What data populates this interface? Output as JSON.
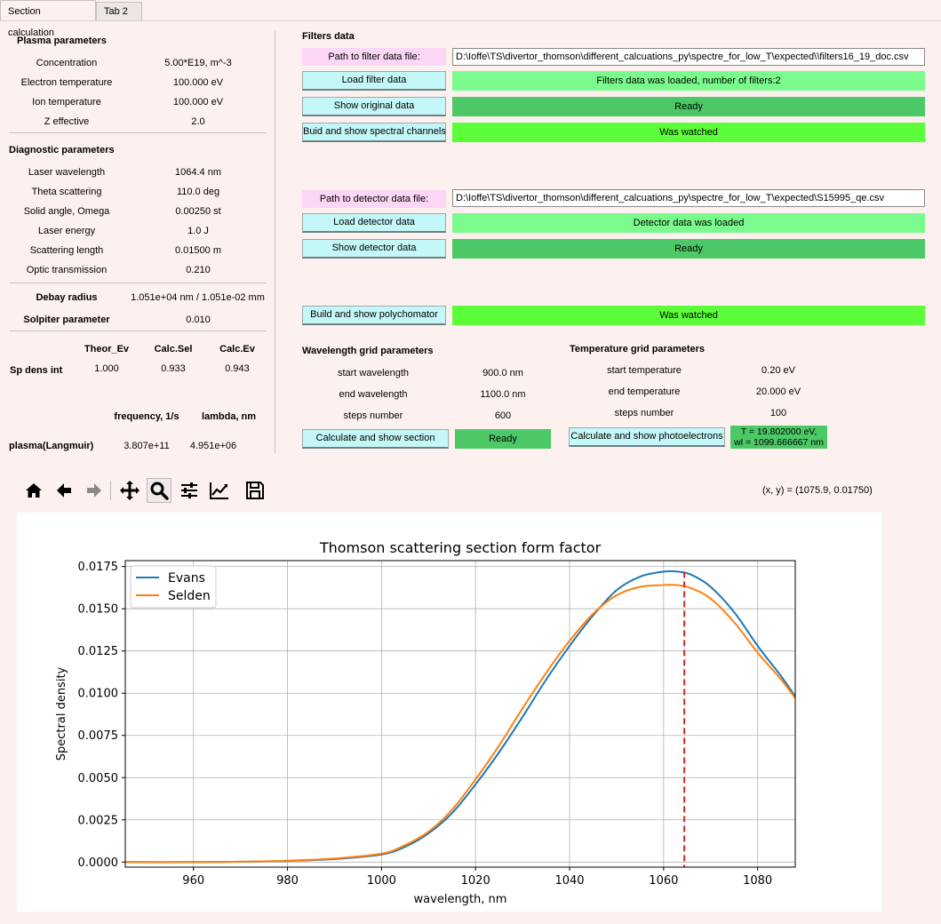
{
  "tabs": [
    {
      "label": "Section calculation"
    },
    {
      "label": "Tab 2"
    }
  ],
  "plasma": {
    "title": "Plasma parameters",
    "rows": [
      {
        "label": "Concentration",
        "value": "5.00*E19, m^-3"
      },
      {
        "label": "Electron temperature",
        "value": "100.000 eV"
      },
      {
        "label": "Ion temperature",
        "value": "100.000 eV"
      },
      {
        "label": "Z effective",
        "value": "2.0"
      }
    ]
  },
  "diagnostic": {
    "title": "Diagnostic parameters",
    "rows": [
      {
        "label": "Laser wavelength",
        "value": "1064.4 nm"
      },
      {
        "label": "Theta scattering",
        "value": "110.0 deg"
      },
      {
        "label": "Solid angle, Omega",
        "value": "0.00250 st"
      },
      {
        "label": "Laser energy",
        "value": "1.0 J"
      },
      {
        "label": "Scattering length",
        "value": "0.01500 m"
      },
      {
        "label": "Optic transmission",
        "value": "0.210"
      }
    ]
  },
  "debay": {
    "label": "Debay radius",
    "value": "1.051e+04 nm / 1.051e-02 mm"
  },
  "solpiter": {
    "label": "Solpiter  parameter",
    "value": "0.010"
  },
  "spdens": {
    "headers": [
      "Theor_Ev",
      "Calc.Sel",
      "Calc.Ev"
    ],
    "row_label": "Sp dens int",
    "values": [
      "1.000",
      "0.933",
      "0.943"
    ]
  },
  "langmuir": {
    "headers": [
      "frequency, 1/s",
      "lambda, nm"
    ],
    "row_label": "plasma(Langmuir)",
    "values": [
      "3.807e+11",
      "4.951e+06"
    ]
  },
  "filters": {
    "title": "Filters data",
    "path_label": "Path to filter data file:",
    "path_value": "D:\\Ioffe\\TS\\divertor_thomson\\different_calcuations_py\\spectre_for_low_T\\expected\\\\filters16_19_doc.csv",
    "load_button": "Load filter data",
    "load_status": "Filters data was loaded, number of filters:2",
    "show_button": "Show original data",
    "show_status": "Ready",
    "build_button": "Buid and show spectral channels",
    "build_status": "Was watched"
  },
  "detector": {
    "path_label": "Path to detector data file:",
    "path_value": "D:\\Ioffe\\TS\\divertor_thomson\\different_calcuations_py\\spectre_for_low_T\\expected\\S15995_qe.csv",
    "load_button": "Load detector data",
    "load_status": "Detector data was loaded",
    "show_button": "Show detector data",
    "show_status": "Ready"
  },
  "polychomator": {
    "button": "Build and show polychomator",
    "status": "Was watched"
  },
  "wavelength_grid": {
    "title": "Wavelength grid parameters",
    "rows": [
      {
        "label": "start wavelength",
        "value": "900.0 nm"
      },
      {
        "label": "end wavelength",
        "value": "1100.0 nm"
      },
      {
        "label": "steps number",
        "value": "600"
      }
    ],
    "button": "Calculate and show section",
    "status": "Ready"
  },
  "temperature_grid": {
    "title": "Temperature grid parameters",
    "rows": [
      {
        "label": "start temperature",
        "value": "0.20  eV"
      },
      {
        "label": "end temperature",
        "value": "20.000 eV"
      },
      {
        "label": "steps number",
        "value": "100"
      }
    ],
    "button": "Calculate and show photoelectrons",
    "status_line1": "T = 19.802000 eV,",
    "status_line2": "wl = 1099.666667 nm"
  },
  "toolbar": {
    "tools": [
      "home-icon",
      "back-arrow-icon",
      "forward-arrow-icon",
      "pan-icon",
      "zoom-icon",
      "subplots-config-icon",
      "edit-curves-icon",
      "save-icon"
    ],
    "coords": "(x, y) = (1075.9, 0.01750)"
  },
  "colors": {
    "cyan_button": "#c4f7f7",
    "pink_label": "#fbd7f5",
    "green_light": "#7bfb8e",
    "green_medium": "#4cc966",
    "green_bright": "#5cfe3a",
    "evans": "#1f77b4",
    "selden": "#ff7f0e",
    "marker": "#d62728"
  },
  "chart_data": {
    "type": "line",
    "title": "Thomson scattering section form factor",
    "xlabel": "wavelength, nm",
    "ylabel": "Spectral density",
    "xlim": [
      945.5,
      1088
    ],
    "ylim": [
      -0.0003,
      0.01785
    ],
    "xticks": [
      960,
      980,
      1000,
      1020,
      1040,
      1060,
      1080
    ],
    "yticks": [
      0.0,
      0.0025,
      0.005,
      0.0075,
      0.01,
      0.0125,
      0.015,
      0.0175
    ],
    "ytick_labels": [
      "0.0000",
      "0.0025",
      "0.0050",
      "0.0075",
      "0.0100",
      "0.0125",
      "0.0150",
      "0.0175"
    ],
    "grid": true,
    "legend": "top-left",
    "vline": {
      "x": 1064.4,
      "style": "dashed"
    },
    "series": [
      {
        "name": "Evans",
        "x": [
          945.5,
          960,
          970,
          980,
          990,
          1000,
          1005,
          1010,
          1015,
          1020,
          1025,
          1030,
          1035,
          1040,
          1045,
          1050,
          1055,
          1060,
          1063,
          1066,
          1070,
          1075,
          1080,
          1085,
          1088
        ],
        "y": [
          0.0,
          0.0,
          2e-05,
          7e-05,
          0.00018,
          0.00045,
          0.0009,
          0.0017,
          0.0029,
          0.0046,
          0.0065,
          0.0086,
          0.0108,
          0.0128,
          0.0146,
          0.0161,
          0.0169,
          0.0172,
          0.0172,
          0.017,
          0.0163,
          0.0148,
          0.0128,
          0.011,
          0.0098
        ]
      },
      {
        "name": "Selden",
        "x": [
          945.5,
          960,
          970,
          980,
          990,
          1000,
          1005,
          1010,
          1015,
          1020,
          1025,
          1030,
          1035,
          1040,
          1045,
          1050,
          1055,
          1060,
          1063,
          1066,
          1070,
          1075,
          1080,
          1085,
          1088
        ],
        "y": [
          0.0,
          0.0,
          2e-05,
          8e-05,
          0.00021,
          0.0005,
          0.001,
          0.0018,
          0.0031,
          0.0049,
          0.0069,
          0.0091,
          0.0112,
          0.0131,
          0.0147,
          0.0158,
          0.0163,
          0.0164,
          0.0164,
          0.0162,
          0.0156,
          0.0142,
          0.0124,
          0.0108,
          0.0097
        ]
      }
    ]
  }
}
